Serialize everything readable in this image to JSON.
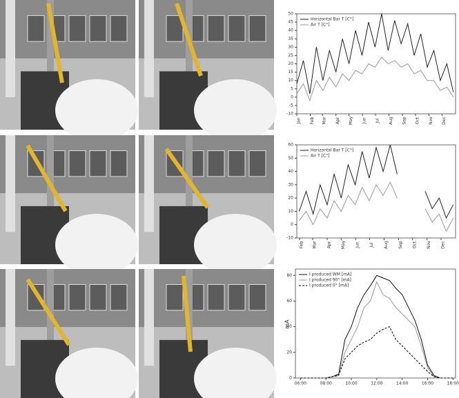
{
  "chart_data": [
    {
      "type": "line",
      "legend": "top-left",
      "xlim": [
        0,
        365
      ],
      "xticks": [
        {
          "value": 0,
          "label": "Jan"
        },
        {
          "value": 31,
          "label": "Feb"
        },
        {
          "value": 59,
          "label": "Mar"
        },
        {
          "value": 90,
          "label": "Apr"
        },
        {
          "value": 120,
          "label": "May"
        },
        {
          "value": 151,
          "label": "Jun"
        },
        {
          "value": 181,
          "label": "Jul"
        },
        {
          "value": 212,
          "label": "Aug"
        },
        {
          "value": 243,
          "label": "Sep"
        },
        {
          "value": 273,
          "label": "Oct"
        },
        {
          "value": 304,
          "label": "Nov"
        },
        {
          "value": 334,
          "label": "Dec"
        }
      ],
      "ylim": [
        -10,
        50
      ],
      "yticks": [
        -10,
        -5,
        0,
        5,
        10,
        15,
        20,
        25,
        30,
        35,
        40,
        45,
        50
      ],
      "x": [
        0,
        15,
        30,
        45,
        60,
        75,
        90,
        105,
        120,
        135,
        150,
        165,
        180,
        195,
        210,
        225,
        240,
        255,
        270,
        285,
        300,
        315,
        330,
        345,
        360
      ],
      "series": [
        {
          "name": "Horizontal Bar T [C°]",
          "color": "#222222",
          "line_style": "solid",
          "values": [
            8,
            22,
            2,
            30,
            10,
            28,
            15,
            35,
            20,
            40,
            25,
            45,
            30,
            50,
            28,
            46,
            32,
            44,
            25,
            38,
            18,
            28,
            10,
            20,
            3
          ]
        },
        {
          "name": "Air T [C°]",
          "color": "#9a9a9a",
          "line_style": "solid",
          "values": [
            2,
            8,
            -2,
            10,
            4,
            12,
            6,
            14,
            10,
            16,
            14,
            20,
            18,
            24,
            20,
            22,
            18,
            20,
            14,
            16,
            10,
            10,
            4,
            6,
            0
          ]
        }
      ]
    },
    {
      "type": "line",
      "legend": "top-left",
      "xlim": [
        25,
        365
      ],
      "xticks": [
        {
          "value": 31,
          "label": "Feb"
        },
        {
          "value": 59,
          "label": "Mar"
        },
        {
          "value": 90,
          "label": "Apr"
        },
        {
          "value": 120,
          "label": "May"
        },
        {
          "value": 151,
          "label": "Jun"
        },
        {
          "value": 181,
          "label": "Jul"
        },
        {
          "value": 212,
          "label": "Aug"
        },
        {
          "value": 243,
          "label": "Sep"
        },
        {
          "value": 273,
          "label": "Oct"
        },
        {
          "value": 304,
          "label": "Nov"
        },
        {
          "value": 334,
          "label": "Dec"
        }
      ],
      "ylim": [
        -10,
        60
      ],
      "yticks": [
        -10,
        0,
        10,
        20,
        30,
        40,
        50,
        60
      ],
      "x": [
        30,
        45,
        60,
        75,
        90,
        105,
        120,
        135,
        150,
        165,
        180,
        195,
        210,
        225,
        240,
        255,
        270,
        285,
        300,
        315,
        330,
        345,
        360
      ],
      "series": [
        {
          "name": "Horizontal Bar T [C°]",
          "color": "#222222",
          "line_style": "solid",
          "values": [
            10,
            25,
            8,
            30,
            15,
            38,
            20,
            45,
            30,
            55,
            35,
            58,
            40,
            60,
            38,
            null,
            null,
            null,
            25,
            12,
            20,
            5,
            15
          ]
        },
        {
          "name": "Air T [C°]",
          "color": "#9a9a9a",
          "line_style": "solid",
          "values": [
            3,
            10,
            0,
            12,
            5,
            18,
            10,
            22,
            15,
            28,
            18,
            30,
            22,
            32,
            20,
            null,
            null,
            null,
            12,
            2,
            8,
            -5,
            5
          ]
        }
      ]
    },
    {
      "type": "line",
      "legend": "top-left",
      "y_label": "mA",
      "xlim": [
        5.6,
        18.2
      ],
      "xticks": [
        {
          "value": 6,
          "label": "06:00"
        },
        {
          "value": 8,
          "label": "08:00"
        },
        {
          "value": 10,
          "label": "10:00"
        },
        {
          "value": 12,
          "label": "12:00"
        },
        {
          "value": 14,
          "label": "14:00"
        },
        {
          "value": 16,
          "label": "16:00"
        },
        {
          "value": 18,
          "label": "18:00"
        }
      ],
      "ylim": [
        0,
        85
      ],
      "yticks": [
        0,
        20,
        40,
        60,
        80
      ],
      "x": [
        6,
        6.5,
        7,
        7.5,
        8,
        8.5,
        9,
        9.5,
        10,
        10.5,
        11,
        11.5,
        12,
        12.5,
        13,
        13.5,
        14,
        14.5,
        15,
        15.5,
        16,
        16.5,
        17,
        17.5,
        18
      ],
      "series": [
        {
          "name": "I produced WM [mA]",
          "color": "#111111",
          "line_style": "solid",
          "values": [
            0,
            0,
            0,
            0,
            0,
            1,
            3,
            30,
            40,
            55,
            65,
            72,
            80,
            78,
            76,
            70,
            65,
            55,
            45,
            30,
            10,
            2,
            0,
            0,
            0
          ]
        },
        {
          "name": "I produced 90° [mA]",
          "color": "#9a9a9a",
          "line_style": "solid",
          "values": [
            0,
            0,
            0,
            0,
            0,
            1,
            2,
            20,
            30,
            40,
            55,
            60,
            75,
            65,
            62,
            55,
            50,
            45,
            40,
            25,
            8,
            1,
            0,
            0,
            0
          ]
        },
        {
          "name": "I produced 0° [mA]",
          "color": "#000000",
          "line_style": "dashed",
          "values": [
            0,
            0,
            0,
            0,
            0,
            1,
            2,
            15,
            20,
            25,
            28,
            30,
            35,
            38,
            40,
            30,
            25,
            20,
            15,
            10,
            5,
            1,
            0,
            0,
            0
          ]
        }
      ]
    }
  ]
}
